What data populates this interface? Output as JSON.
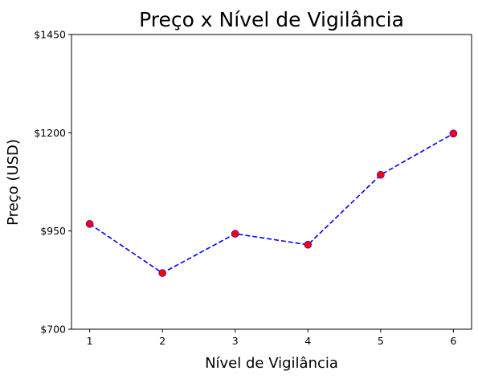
{
  "chart_data": {
    "type": "line",
    "title": "Preço x Nível de Vigilância",
    "xlabel": "Nível de Vigilância",
    "ylabel": "Preço (USD)",
    "x": [
      1,
      2,
      3,
      4,
      5,
      6
    ],
    "y": [
      968,
      843,
      943,
      915,
      1093,
      1198
    ],
    "x_ticks": [
      "1",
      "2",
      "3",
      "4",
      "5",
      "6"
    ],
    "y_ticks": [
      {
        "value": 700,
        "label": "$700"
      },
      {
        "value": 950,
        "label": "$950"
      },
      {
        "value": 1200,
        "label": "$1200"
      },
      {
        "value": 1450,
        "label": "$1450"
      }
    ],
    "xlim": [
      0.75,
      6.25
    ],
    "ylim": [
      700,
      1450
    ],
    "grid": false,
    "line_color": "#0000ff",
    "line_style": "dashed",
    "marker_color": "#ff0000",
    "marker_edge_color": "#0000ff"
  }
}
